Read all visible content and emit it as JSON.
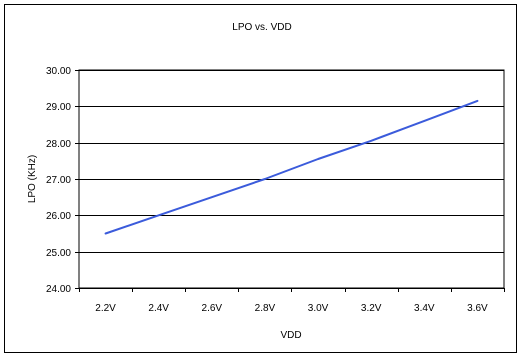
{
  "chart_data": {
    "type": "line",
    "title": "LPO vs. VDD",
    "xlabel": "VDD",
    "ylabel": "LPO (KHz)",
    "x_tick_labels": [
      "2.2V",
      "2.4V",
      "2.6V",
      "2.8V",
      "3.0V",
      "3.2V",
      "3.4V",
      "3.6V"
    ],
    "y_tick_labels": [
      "24.00",
      "25.00",
      "26.00",
      "27.00",
      "28.00",
      "29.00",
      "30.00"
    ],
    "xlim": [
      2.1,
      3.7
    ],
    "ylim": [
      24,
      30
    ],
    "grid": "horizontal",
    "legend": "none",
    "series": [
      {
        "color": "#3b5bdb",
        "points": [
          {
            "x": 2.2,
            "y": 25.5
          },
          {
            "x": 2.4,
            "y": 26.0
          },
          {
            "x": 2.6,
            "y": 26.5
          },
          {
            "x": 2.8,
            "y": 27.0
          },
          {
            "x": 3.0,
            "y": 27.55
          },
          {
            "x": 3.2,
            "y": 28.05
          },
          {
            "x": 3.4,
            "y": 28.6
          },
          {
            "x": 3.6,
            "y": 29.15
          }
        ]
      }
    ]
  }
}
